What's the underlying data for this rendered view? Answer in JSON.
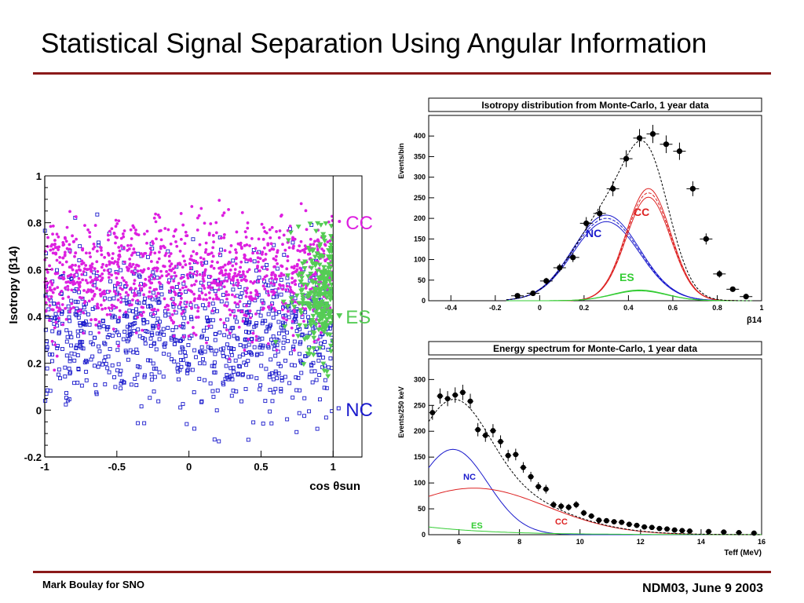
{
  "slide": {
    "title": "Statistical Signal Separation Using Angular Information",
    "footer_left": "Mark Boulay for SNO",
    "footer_right": "NDM03, June 9 2003",
    "accent_color": "#8b1a1a"
  },
  "colors": {
    "cc": "#dd1fe0",
    "nc": "#1a1acc",
    "es": "#55cc55",
    "cc_curve": "#dd2222",
    "nc_curve": "#1a1acc",
    "es_curve": "#33cc33",
    "total": "#000000"
  },
  "chart_data": [
    {
      "type": "scatter",
      "xlabel": "cos θsun",
      "ylabel": "Isotropy (β14)",
      "xlim": [
        -1,
        1.2
      ],
      "ylim": [
        -0.2,
        1
      ],
      "xticks": [
        "-1",
        "-0.5",
        "0",
        "0.5",
        "1"
      ],
      "yticks": [
        "-0.2",
        "0",
        "0.2",
        "0.4",
        "0.6",
        "0.8",
        "1"
      ],
      "series": [
        {
          "name": "CC",
          "marker": "filled-circle",
          "color": "#dd1fe0",
          "x_range": [
            -1,
            1
          ],
          "y_center": 0.57,
          "y_spread": 0.12
        },
        {
          "name": "NC",
          "marker": "open-square",
          "color": "#1a1acc",
          "x_range": [
            -1,
            1
          ],
          "y_center": 0.33,
          "y_spread": 0.16
        },
        {
          "name": "ES",
          "marker": "filled-triangle-down",
          "color": "#55cc55",
          "x_range": [
            0.4,
            1
          ],
          "y_center": 0.5,
          "y_spread": 0.14
        }
      ],
      "legend": [
        {
          "label": "CC"
        },
        {
          "label": "ES"
        },
        {
          "label": "NC"
        }
      ]
    },
    {
      "type": "line",
      "title": "Isotropy distribution from Monte-Carlo, 1 year data",
      "xlabel": "β14",
      "ylabel": "Events/bin",
      "xlim": [
        -0.5,
        1
      ],
      "ylim": [
        0,
        450
      ],
      "xticks": [
        "-0.4",
        "-0.2",
        "0",
        "0.2",
        "0.4",
        "0.6",
        "0.8",
        "1"
      ],
      "yticks": [
        "0",
        "50",
        "100",
        "150",
        "200",
        "250",
        "300",
        "350",
        "400"
      ],
      "data_points": {
        "x": [
          -0.1,
          -0.03,
          0.03,
          0.09,
          0.15,
          0.21,
          0.27,
          0.33,
          0.39,
          0.45,
          0.51,
          0.57,
          0.63,
          0.69,
          0.75,
          0.81,
          0.87,
          0.93
        ],
        "y": [
          12,
          18,
          48,
          80,
          105,
          188,
          212,
          272,
          345,
          395,
          405,
          380,
          363,
          272,
          150,
          65,
          28,
          10
        ]
      },
      "series": [
        {
          "name": "NC",
          "peak_x": 0.3,
          "peak_y": 200,
          "width": 0.15
        },
        {
          "name": "CC",
          "peak_x": 0.49,
          "peak_y": 262,
          "width": 0.1
        },
        {
          "name": "ES",
          "peak_x": 0.45,
          "peak_y": 25,
          "width": 0.12
        }
      ],
      "labels": [
        "NC",
        "CC",
        "ES"
      ]
    },
    {
      "type": "line",
      "title": "Energy spectrum for Monte-Carlo, 1 year data",
      "xlabel": "Teff (MeV)",
      "ylabel": "Events/250 keV",
      "xlim": [
        5,
        16
      ],
      "ylim": [
        0,
        340
      ],
      "xticks": [
        "6",
        "8",
        "10",
        "12",
        "14",
        "16"
      ],
      "yticks": [
        "0",
        "50",
        "100",
        "150",
        "200",
        "250",
        "300"
      ],
      "data_points": {
        "x": [
          5.125,
          5.375,
          5.625,
          5.875,
          6.125,
          6.375,
          6.625,
          6.875,
          7.125,
          7.375,
          7.625,
          7.875,
          8.125,
          8.375,
          8.625,
          8.875,
          9.125,
          9.375,
          9.625,
          9.875,
          10.125,
          10.375,
          10.625,
          10.875,
          11.125,
          11.375,
          11.625,
          11.875,
          12.125,
          12.375,
          12.625,
          12.875,
          13.125,
          13.375,
          13.625,
          14.25,
          14.75,
          15.25,
          15.75
        ],
        "y": [
          236,
          268,
          263,
          270,
          275,
          258,
          203,
          192,
          201,
          180,
          153,
          155,
          130,
          112,
          93,
          88,
          58,
          55,
          53,
          58,
          42,
          36,
          28,
          27,
          25,
          24,
          20,
          18,
          15,
          14,
          12,
          11,
          9,
          8,
          7,
          6,
          5,
          4,
          3
        ]
      },
      "series": [
        {
          "name": "NC"
        },
        {
          "name": "CC"
        },
        {
          "name": "ES"
        }
      ],
      "labels": [
        "NC",
        "CC",
        "ES"
      ]
    }
  ]
}
